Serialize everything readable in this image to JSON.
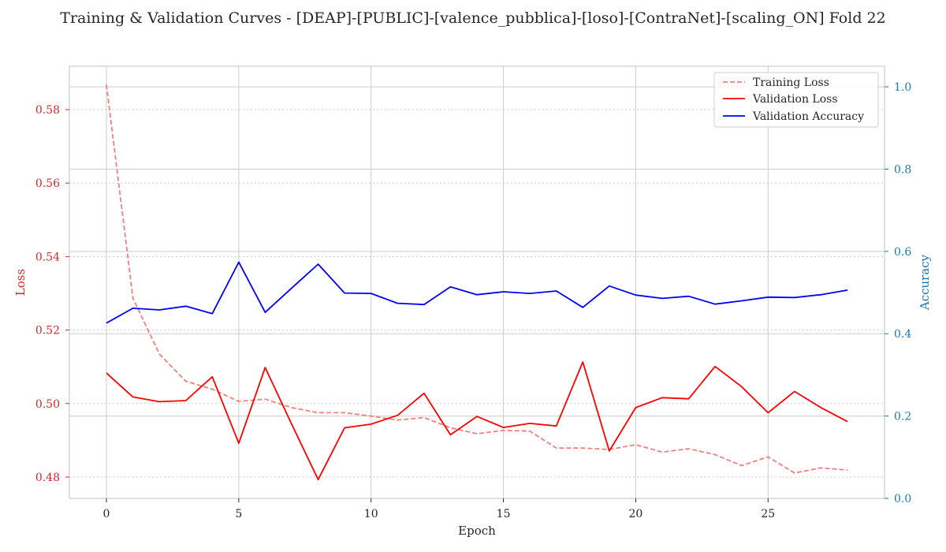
{
  "chart_data": {
    "type": "line",
    "title": "Training & Validation Curves - [DEAP]-[PUBLIC]-[valence_pubblica]-[loso]-[ContraNet]-[scaling_ON] Fold 22",
    "xlabel": "Epoch",
    "ylabel_left": "Loss",
    "ylabel_right": "Accuracy",
    "xlim": [
      -1.4,
      29.4
    ],
    "ylim_left": [
      0.4742,
      0.5918
    ],
    "ylim_right": [
      0.0,
      1.05
    ],
    "xticks": [
      0,
      5,
      10,
      15,
      20,
      25
    ],
    "yticks_left": [
      0.48,
      0.5,
      0.52,
      0.54,
      0.56,
      0.58
    ],
    "yticks_right": [
      0.0,
      0.2,
      0.4,
      0.6,
      0.8,
      1.0
    ],
    "left_axis_color": "#d62728",
    "right_axis_color": "#1f77b4",
    "grid": true,
    "legend_position": "top-right",
    "x": [
      0,
      1,
      2,
      3,
      4,
      5,
      6,
      7,
      8,
      9,
      10,
      11,
      12,
      13,
      14,
      15,
      16,
      17,
      18,
      19,
      20,
      21,
      22,
      23,
      24,
      25,
      26,
      27,
      28
    ],
    "series": [
      {
        "name": "Training Loss",
        "axis": "left",
        "color": "#f08080",
        "style": "dashed",
        "values": [
          0.5868,
          0.5287,
          0.5135,
          0.5061,
          0.5039,
          0.5006,
          0.5012,
          0.4989,
          0.4975,
          0.4975,
          0.4966,
          0.4955,
          0.4962,
          0.4934,
          0.4918,
          0.4927,
          0.4925,
          0.4879,
          0.4879,
          0.4875,
          0.4888,
          0.4868,
          0.4877,
          0.4861,
          0.4831,
          0.4855,
          0.4811,
          0.4825,
          0.4819
        ]
      },
      {
        "name": "Validation Loss",
        "axis": "left",
        "color": "#ff0000",
        "style": "solid",
        "values": [
          0.5083,
          0.5018,
          0.5005,
          0.5008,
          0.5073,
          0.4892,
          0.5098,
          0.4944,
          0.4793,
          0.4934,
          0.4944,
          0.4968,
          0.5028,
          0.4915,
          0.4965,
          0.4935,
          0.4946,
          0.4939,
          0.5113,
          0.4871,
          0.4989,
          0.5016,
          0.5013,
          0.5101,
          0.5046,
          0.4975,
          0.5033,
          0.4989,
          0.4951
        ]
      },
      {
        "name": "Validation Accuracy",
        "axis": "right",
        "color": "#0000ff",
        "style": "solid",
        "values": [
          0.426,
          0.462,
          0.458,
          0.467,
          0.449,
          0.574,
          0.452,
          0.511,
          0.569,
          0.499,
          0.498,
          0.474,
          0.471,
          0.514,
          0.495,
          0.502,
          0.498,
          0.504,
          0.464,
          0.516,
          0.494,
          0.486,
          0.491,
          0.472,
          0.48,
          0.489,
          0.488,
          0.495,
          0.506
        ]
      }
    ]
  }
}
